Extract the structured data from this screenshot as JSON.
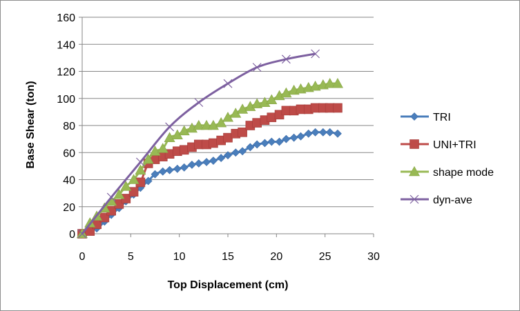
{
  "chart_data": {
    "type": "scatter",
    "xlabel": "Top Displacement (cm)",
    "ylabel": "Base Shear (ton)",
    "xlim": [
      0,
      30
    ],
    "ylim": [
      0,
      160
    ],
    "xticks": [
      "0",
      "5",
      "10",
      "15",
      "20",
      "25",
      "30"
    ],
    "yticks": [
      "0",
      "20",
      "40",
      "60",
      "80",
      "100",
      "120",
      "140",
      "160"
    ],
    "grid": {
      "horizontal": true,
      "vertical": false
    },
    "legend_position": "right",
    "series": [
      {
        "name": "TRI",
        "color": "#4a7ebb",
        "marker": "diamond",
        "x": [
          0,
          1.5,
          2.3,
          3,
          3.8,
          4.5,
          5.3,
          6,
          6.8,
          7.5,
          8.3,
          9,
          9.8,
          10.5,
          11.3,
          12,
          12.8,
          13.5,
          14.3,
          15,
          15.8,
          16.5,
          17.3,
          18,
          18.8,
          19.5,
          20.3,
          21,
          21.8,
          22.5,
          23.3,
          24,
          24.8,
          25.5,
          26.3
        ],
        "y": [
          0,
          4,
          9,
          14,
          19,
          24,
          29,
          34,
          39,
          44,
          46,
          47,
          48,
          49,
          51,
          52,
          53,
          54,
          56,
          58,
          60,
          61,
          64,
          66,
          67,
          68,
          68,
          70,
          71,
          72,
          74,
          75,
          75,
          75,
          74
        ]
      },
      {
        "name": "UNI+TRI",
        "color": "#be4b48",
        "marker": "square",
        "x": [
          0,
          0.8,
          1.5,
          2.3,
          3,
          3.8,
          4.5,
          5.3,
          6,
          6.8,
          7.5,
          8.3,
          9,
          9.8,
          10.5,
          11.3,
          12,
          12.8,
          13.5,
          14.3,
          15,
          15.8,
          16.5,
          17.3,
          18,
          18.8,
          19.5,
          20.3,
          21,
          21.8,
          22.5,
          23.3,
          24,
          24.8,
          25.5,
          26.3
        ],
        "y": [
          0,
          2,
          7,
          12,
          17,
          22,
          26,
          31,
          38,
          52,
          55,
          57,
          59,
          61,
          62,
          64,
          66,
          66,
          67,
          69,
          71,
          74,
          75,
          80,
          82,
          84,
          86,
          88,
          91,
          91,
          92,
          92,
          93,
          93,
          93,
          93
        ]
      },
      {
        "name": "shape mode",
        "color": "#98b954",
        "marker": "triangle",
        "x": [
          0,
          0.8,
          1.5,
          2.3,
          3,
          3.8,
          4.5,
          5.3,
          6,
          6.8,
          7.5,
          8.3,
          9,
          9.8,
          10.5,
          11.3,
          12,
          12.8,
          13.5,
          14.3,
          15,
          15.8,
          16.5,
          17.3,
          18,
          18.8,
          19.5,
          20.3,
          21,
          21.8,
          22.5,
          23.3,
          24,
          24.8,
          25.5,
          26.3
        ],
        "y": [
          0,
          8,
          13,
          19,
          24,
          29,
          35,
          40,
          47,
          55,
          61,
          63,
          71,
          73,
          76,
          78,
          80,
          80,
          80,
          82,
          86,
          89,
          92,
          94,
          96,
          97,
          99,
          102,
          104,
          106,
          107,
          108,
          109,
          110,
          111,
          111
        ]
      },
      {
        "name": "dyn-ave",
        "color": "#7d60a0",
        "marker": "x",
        "x": [
          0,
          3,
          6,
          9,
          12,
          15,
          18,
          21,
          24
        ],
        "y": [
          0,
          27,
          53,
          79,
          97,
          111,
          123,
          129,
          133
        ]
      }
    ]
  }
}
